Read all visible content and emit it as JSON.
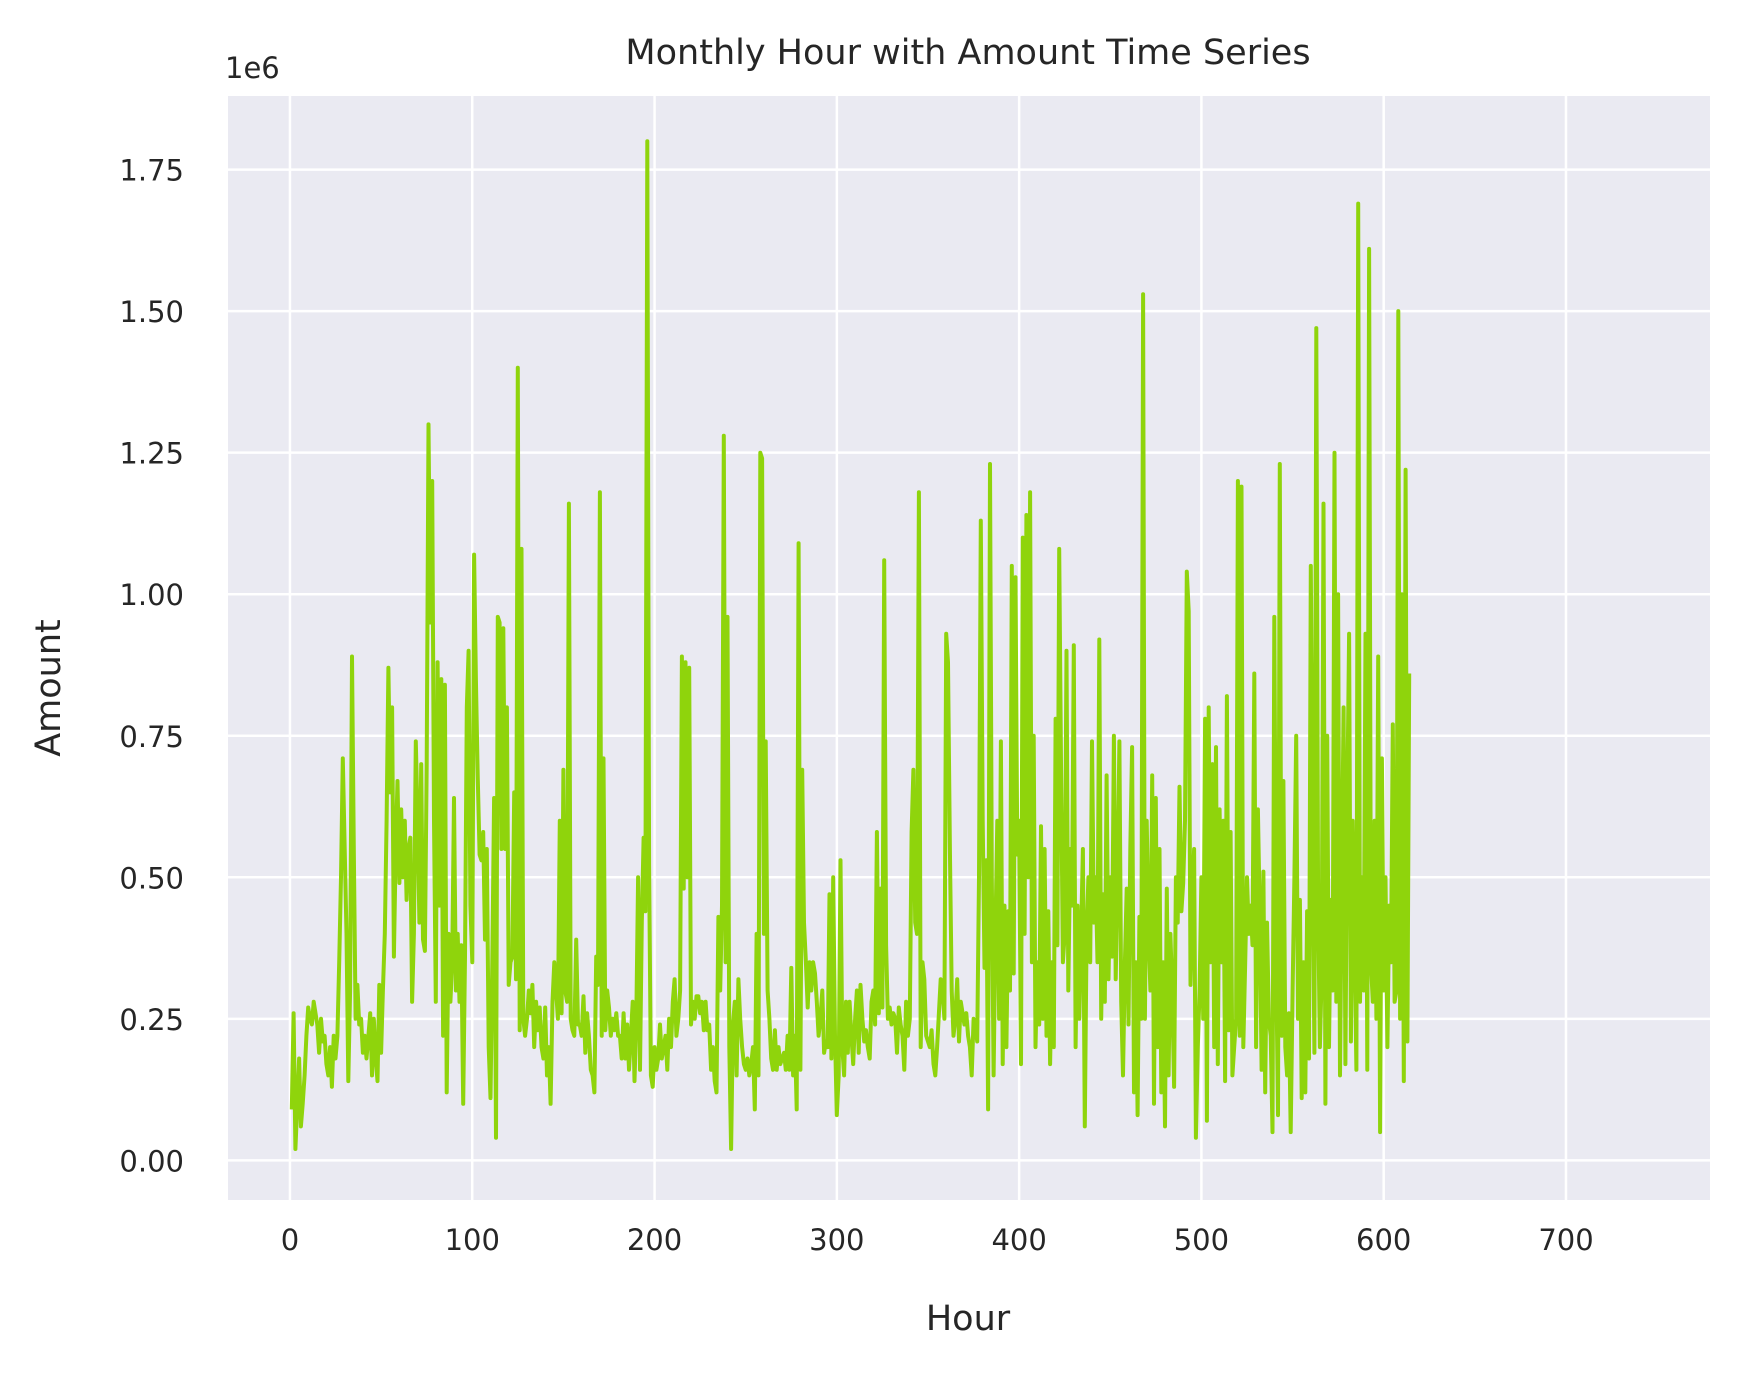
{
  "chart_data": {
    "type": "line",
    "title": "Monthly Hour with Amount Time Series",
    "xlabel": "Hour",
    "ylabel": "Amount",
    "y_offset_label": "1e6",
    "xlim": [
      -34,
      779
    ],
    "ylim": [
      -0.07,
      1.88
    ],
    "x_ticks": [
      0,
      100,
      200,
      300,
      400,
      500,
      600,
      700
    ],
    "y_ticks": [
      0.0,
      0.25,
      0.5,
      0.75,
      1.0,
      1.25,
      1.5,
      1.75
    ],
    "y_tick_labels": [
      "0.00",
      "0.25",
      "0.50",
      "0.75",
      "1.00",
      "1.25",
      "1.50",
      "1.75"
    ],
    "grid": true,
    "background": "#eaeaf2",
    "grid_color": "#ffffff",
    "line_color": "#8fd40c",
    "series": [
      {
        "x_start": 1,
        "x_step": 1,
        "values": [
          0.09,
          0.26,
          0.02,
          0.1,
          0.18,
          0.06,
          0.1,
          0.15,
          0.22,
          0.27,
          0.25,
          0.24,
          0.28,
          0.26,
          0.24,
          0.19,
          0.25,
          0.21,
          0.22,
          0.17,
          0.15,
          0.2,
          0.13,
          0.22,
          0.18,
          0.22,
          0.35,
          0.5,
          0.71,
          0.55,
          0.4,
          0.14,
          0.3,
          0.89,
          0.55,
          0.25,
          0.31,
          0.24,
          0.25,
          0.19,
          0.22,
          0.18,
          0.22,
          0.26,
          0.15,
          0.25,
          0.18,
          0.14,
          0.31,
          0.19,
          0.3,
          0.4,
          0.6,
          0.87,
          0.65,
          0.8,
          0.36,
          0.55,
          0.67,
          0.49,
          0.62,
          0.5,
          0.6,
          0.46,
          0.55,
          0.57,
          0.28,
          0.4,
          0.74,
          0.6,
          0.42,
          0.7,
          0.39,
          0.37,
          0.7,
          1.3,
          0.95,
          1.2,
          0.6,
          0.28,
          0.88,
          0.45,
          0.85,
          0.22,
          0.84,
          0.12,
          0.4,
          0.28,
          0.35,
          0.64,
          0.3,
          0.4,
          0.28,
          0.38,
          0.1,
          0.36,
          0.8,
          0.9,
          0.45,
          0.35,
          1.07,
          0.85,
          0.68,
          0.54,
          0.53,
          0.58,
          0.39,
          0.55,
          0.2,
          0.11,
          0.35,
          0.64,
          0.04,
          0.96,
          0.95,
          0.55,
          0.94,
          0.55,
          0.8,
          0.31,
          0.35,
          0.36,
          0.65,
          0.32,
          1.4,
          0.23,
          1.08,
          0.25,
          0.22,
          0.25,
          0.3,
          0.26,
          0.31,
          0.2,
          0.28,
          0.23,
          0.27,
          0.2,
          0.18,
          0.27,
          0.15,
          0.2,
          0.1,
          0.28,
          0.35,
          0.3,
          0.25,
          0.6,
          0.26,
          0.69,
          0.3,
          0.28,
          1.16,
          0.25,
          0.23,
          0.22,
          0.39,
          0.24,
          0.24,
          0.22,
          0.29,
          0.19,
          0.26,
          0.22,
          0.16,
          0.15,
          0.12,
          0.36,
          0.31,
          1.18,
          0.22,
          0.71,
          0.23,
          0.3,
          0.27,
          0.22,
          0.25,
          0.23,
          0.26,
          0.22,
          0.22,
          0.18,
          0.26,
          0.18,
          0.24,
          0.16,
          0.22,
          0.28,
          0.14,
          0.25,
          0.5,
          0.16,
          0.42,
          0.57,
          0.44,
          1.8,
          0.52,
          0.15,
          0.13,
          0.2,
          0.16,
          0.18,
          0.24,
          0.18,
          0.2,
          0.22,
          0.16,
          0.25,
          0.2,
          0.28,
          0.32,
          0.22,
          0.25,
          0.3,
          0.89,
          0.48,
          0.88,
          0.5,
          0.87,
          0.24,
          0.28,
          0.25,
          0.29,
          0.29,
          0.26,
          0.28,
          0.23,
          0.28,
          0.23,
          0.24,
          0.16,
          0.2,
          0.14,
          0.12,
          0.43,
          0.3,
          0.45,
          1.28,
          0.35,
          0.96,
          0.2,
          0.02,
          0.24,
          0.28,
          0.15,
          0.32,
          0.25,
          0.2,
          0.17,
          0.16,
          0.18,
          0.15,
          0.17,
          0.2,
          0.09,
          0.4,
          0.15,
          1.25,
          1.24,
          0.4,
          0.74,
          0.3,
          0.25,
          0.18,
          0.16,
          0.23,
          0.16,
          0.2,
          0.17,
          0.18,
          0.19,
          0.16,
          0.22,
          0.16,
          0.34,
          0.15,
          0.22,
          0.09,
          1.09,
          0.16,
          0.69,
          0.42,
          0.35,
          0.27,
          0.35,
          0.3,
          0.35,
          0.33,
          0.28,
          0.22,
          0.25,
          0.3,
          0.19,
          0.21,
          0.2,
          0.47,
          0.18,
          0.5,
          0.22,
          0.08,
          0.15,
          0.53,
          0.2,
          0.15,
          0.28,
          0.19,
          0.28,
          0.22,
          0.17,
          0.25,
          0.3,
          0.19,
          0.31,
          0.25,
          0.21,
          0.23,
          0.2,
          0.18,
          0.28,
          0.3,
          0.24,
          0.58,
          0.26,
          0.48,
          0.27,
          1.06,
          0.38,
          0.25,
          0.27,
          0.24,
          0.26,
          0.25,
          0.19,
          0.27,
          0.24,
          0.22,
          0.16,
          0.28,
          0.22,
          0.25,
          0.58,
          0.69,
          0.42,
          0.4,
          1.18,
          0.2,
          0.35,
          0.32,
          0.22,
          0.21,
          0.2,
          0.23,
          0.17,
          0.15,
          0.2,
          0.26,
          0.32,
          0.3,
          0.25,
          0.93,
          0.88,
          0.55,
          0.3,
          0.22,
          0.25,
          0.32,
          0.21,
          0.28,
          0.26,
          0.24,
          0.26,
          0.22,
          0.2,
          0.15,
          0.25,
          0.24,
          0.21,
          0.5,
          1.13,
          0.6,
          0.34,
          0.53,
          0.09,
          1.23,
          0.5,
          0.15,
          0.4,
          0.6,
          0.25,
          0.74,
          0.17,
          0.45,
          0.2,
          0.44,
          0.3,
          1.05,
          0.33,
          1.03,
          0.54,
          0.6,
          0.17,
          1.1,
          0.4,
          1.14,
          0.5,
          1.18,
          0.35,
          0.75,
          0.2,
          0.35,
          0.24,
          0.59,
          0.25,
          0.55,
          0.22,
          0.44,
          0.17,
          0.35,
          0.2,
          0.78,
          0.38,
          1.08,
          0.68,
          0.35,
          0.4,
          0.9,
          0.3,
          0.55,
          0.45,
          0.91,
          0.2,
          0.45,
          0.25,
          0.4,
          0.55,
          0.06,
          0.4,
          0.5,
          0.35,
          0.74,
          0.42,
          0.5,
          0.35,
          0.92,
          0.25,
          0.47,
          0.28,
          0.68,
          0.32,
          0.5,
          0.36,
          0.75,
          0.32,
          0.5,
          0.74,
          0.28,
          0.15,
          0.35,
          0.48,
          0.24,
          0.55,
          0.73,
          0.12,
          0.35,
          0.08,
          0.43,
          0.25,
          1.53,
          0.25,
          0.6,
          0.4,
          0.3,
          0.68,
          0.1,
          0.64,
          0.2,
          0.55,
          0.12,
          0.35,
          0.06,
          0.48,
          0.15,
          0.4,
          0.29,
          0.13,
          0.5,
          0.42,
          0.66,
          0.44,
          0.49,
          0.6,
          1.04,
          0.97,
          0.31,
          0.45,
          0.55,
          0.04,
          0.2,
          0.3,
          0.5,
          0.25,
          0.78,
          0.07,
          0.8,
          0.35,
          0.7,
          0.2,
          0.73,
          0.17,
          0.62,
          0.35,
          0.6,
          0.14,
          0.82,
          0.23,
          0.58,
          0.15,
          0.2,
          0.25,
          1.2,
          0.22,
          1.19,
          0.2,
          0.35,
          0.5,
          0.4,
          0.45,
          0.38,
          0.86,
          0.2,
          0.62,
          0.44,
          0.16,
          0.51,
          0.12,
          0.42,
          0.25,
          0.22,
          0.05,
          0.96,
          0.35,
          0.08,
          1.23,
          0.22,
          0.67,
          0.2,
          0.15,
          0.26,
          0.05,
          0.3,
          0.5,
          0.75,
          0.25,
          0.46,
          0.11,
          0.35,
          0.12,
          0.44,
          0.18,
          1.05,
          0.54,
          0.19,
          1.47,
          0.45,
          0.2,
          0.33,
          1.16,
          0.1,
          0.75,
          0.2,
          0.46,
          0.3,
          1.25,
          0.28,
          1.0,
          0.15,
          0.5,
          0.8,
          0.17,
          0.62,
          0.93,
          0.21,
          0.6,
          0.4,
          0.16,
          1.69,
          0.28,
          0.5,
          0.3,
          0.93,
          0.16,
          1.61,
          0.35,
          0.28,
          0.6,
          0.25,
          0.89,
          0.05,
          0.71,
          0.3,
          0.5,
          0.2,
          0.45,
          0.35,
          0.77,
          0.28,
          0.3,
          1.5,
          0.25,
          1.0,
          0.14,
          1.22,
          0.21,
          0.86
        ]
      }
    ]
  }
}
